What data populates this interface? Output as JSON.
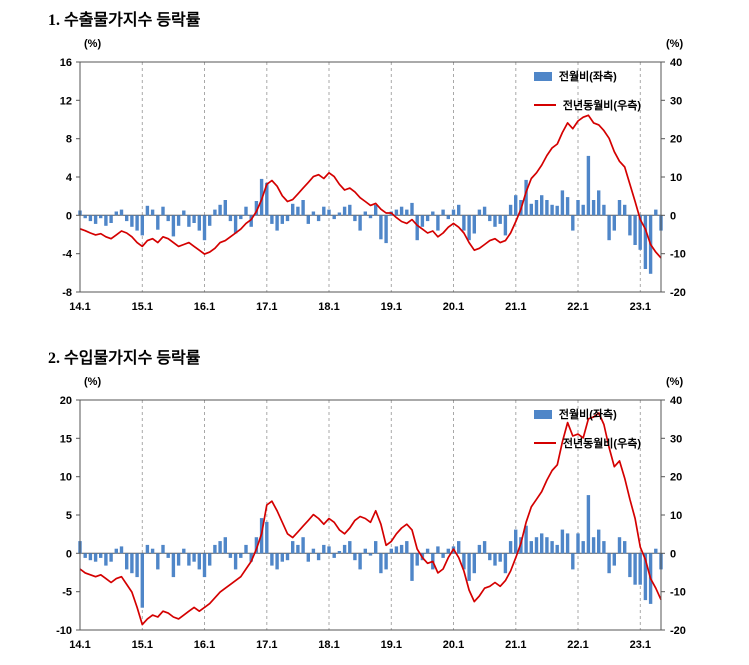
{
  "chart_data": [
    {
      "type": "bar+line",
      "title": "1. 수출물가지수 등락률",
      "unit_left": "(%)",
      "unit_right": "(%)",
      "bar_color": "#4f86c8",
      "line_color": "#d40000",
      "legend_position": "top-right-inside",
      "grid": "vertical-dashed",
      "x_ticks": [
        "14.1",
        "15.1",
        "16.1",
        "17.1",
        "18.1",
        "19.1",
        "20.1",
        "21.1",
        "22.1",
        "23.1"
      ],
      "left_axis": {
        "min": -8,
        "max": 16,
        "ticks": [
          16,
          12,
          8,
          4,
          0,
          -4,
          -8
        ]
      },
      "right_axis": {
        "min": -20,
        "max": 40,
        "ticks": [
          40,
          30,
          20,
          10,
          0,
          -10,
          -20
        ]
      },
      "x": [
        "14.1",
        "14.2",
        "14.3",
        "14.4",
        "14.5",
        "14.6",
        "14.7",
        "14.8",
        "14.9",
        "14.10",
        "14.11",
        "14.12",
        "15.1",
        "15.2",
        "15.3",
        "15.4",
        "15.5",
        "15.6",
        "15.7",
        "15.8",
        "15.9",
        "15.10",
        "15.11",
        "15.12",
        "16.1",
        "16.2",
        "16.3",
        "16.4",
        "16.5",
        "16.6",
        "16.7",
        "16.8",
        "16.9",
        "16.10",
        "16.11",
        "16.12",
        "17.1",
        "17.2",
        "17.3",
        "17.4",
        "17.5",
        "17.6",
        "17.7",
        "17.8",
        "17.9",
        "17.10",
        "17.11",
        "17.12",
        "18.1",
        "18.2",
        "18.3",
        "18.4",
        "18.5",
        "18.6",
        "18.7",
        "18.8",
        "18.9",
        "18.10",
        "18.11",
        "18.12",
        "19.1",
        "19.2",
        "19.3",
        "19.4",
        "19.5",
        "19.6",
        "19.7",
        "19.8",
        "19.9",
        "19.10",
        "19.11",
        "19.12",
        "20.1",
        "20.2",
        "20.3",
        "20.4",
        "20.5",
        "20.6",
        "20.7",
        "20.8",
        "20.9",
        "20.10",
        "20.11",
        "20.12",
        "21.1",
        "21.2",
        "21.3",
        "21.4",
        "21.5",
        "21.6",
        "21.7",
        "21.8",
        "21.9",
        "21.10",
        "21.11",
        "21.12",
        "22.1",
        "22.2",
        "22.3",
        "22.4",
        "22.5",
        "22.6",
        "22.7",
        "22.8",
        "22.9",
        "22.10",
        "22.11",
        "22.12",
        "23.1",
        "23.2",
        "23.3",
        "23.4",
        "23.5"
      ],
      "series": [
        {
          "name": "전월비(좌측)",
          "type": "bar",
          "axis": "left",
          "values": [
            0.5,
            -0.3,
            -0.6,
            -0.9,
            -0.3,
            -1.1,
            -0.8,
            0.4,
            0.6,
            -0.6,
            -1.2,
            -1.6,
            -2.1,
            1.0,
            0.6,
            -1.5,
            0.9,
            -0.6,
            -2.2,
            -1.1,
            0.5,
            -1.2,
            -0.8,
            -1.6,
            -2.6,
            -1.1,
            0.6,
            1.1,
            1.6,
            -0.6,
            -1.9,
            -0.4,
            0.9,
            -1.2,
            1.5,
            3.8,
            3.4,
            -0.9,
            -1.6,
            -0.9,
            -0.6,
            1.2,
            0.9,
            1.6,
            -0.9,
            0.4,
            -0.6,
            0.9,
            0.6,
            -0.4,
            0.3,
            0.9,
            1.1,
            -0.6,
            -1.6,
            0.4,
            -0.3,
            1.1,
            -2.5,
            -2.9,
            0.4,
            0.6,
            0.9,
            0.6,
            1.3,
            -2.6,
            -1.2,
            -0.6,
            0.4,
            -1.6,
            0.6,
            -0.4,
            0.6,
            1.1,
            -1.6,
            -2.6,
            -1.9,
            0.6,
            0.9,
            -0.6,
            -1.2,
            -0.9,
            -2.1,
            1.1,
            2.1,
            1.6,
            3.7,
            1.2,
            1.6,
            2.1,
            1.6,
            1.1,
            1.0,
            2.6,
            1.9,
            -1.6,
            1.6,
            1.1,
            6.2,
            1.6,
            2.6,
            1.1,
            -2.6,
            -1.6,
            1.6,
            1.1,
            -2.1,
            -3.1,
            -3.6,
            -5.6,
            -6.1,
            0.6,
            -1.6
          ]
        },
        {
          "name": "전년동월비(우측)",
          "type": "line",
          "axis": "right",
          "values": [
            -3.5,
            -4.0,
            -4.6,
            -5.1,
            -4.8,
            -5.6,
            -6.1,
            -5.1,
            -4.1,
            -4.6,
            -5.6,
            -7.1,
            -8.1,
            -6.6,
            -6.1,
            -7.1,
            -5.6,
            -6.1,
            -7.1,
            -8.1,
            -7.6,
            -7.1,
            -8.1,
            -9.1,
            -10.1,
            -9.6,
            -8.6,
            -7.1,
            -6.6,
            -5.6,
            -4.6,
            -3.6,
            -2.1,
            -1.1,
            1.0,
            4.1,
            8.1,
            9.1,
            7.6,
            5.1,
            3.6,
            4.1,
            5.6,
            7.1,
            8.6,
            10.1,
            10.6,
            9.6,
            11.1,
            10.1,
            8.1,
            6.6,
            7.1,
            6.1,
            4.6,
            3.6,
            2.6,
            3.1,
            1.6,
            0.6,
            0.6,
            -0.6,
            -1.6,
            -2.1,
            -1.1,
            -2.6,
            -3.6,
            -4.6,
            -4.1,
            -5.6,
            -4.6,
            -3.1,
            -2.1,
            -3.1,
            -4.6,
            -7.1,
            -9.1,
            -8.6,
            -7.6,
            -6.6,
            -6.1,
            -7.1,
            -6.6,
            -4.6,
            -1.6,
            1.6,
            6.1,
            9.6,
            11.1,
            13.1,
            15.6,
            17.6,
            18.6,
            21.6,
            24.1,
            22.6,
            24.6,
            25.6,
            26.1,
            24.1,
            23.6,
            22.1,
            20.1,
            16.6,
            14.1,
            12.6,
            8.1,
            3.6,
            -1.1,
            -3.6,
            -7.6,
            -9.6,
            -11.1
          ]
        }
      ]
    },
    {
      "type": "bar+line",
      "title": "2. 수입물가지수 등락률",
      "unit_left": "(%)",
      "unit_right": "(%)",
      "bar_color": "#4f86c8",
      "line_color": "#d40000",
      "legend_position": "top-right-inside",
      "grid": "vertical-dashed",
      "x_ticks": [
        "14.1",
        "15.1",
        "16.1",
        "17.1",
        "18.1",
        "19.1",
        "20.1",
        "21.1",
        "22.1",
        "23.1"
      ],
      "left_axis": {
        "min": -10,
        "max": 20,
        "ticks": [
          20,
          15,
          10,
          5,
          0,
          -5,
          -10
        ]
      },
      "right_axis": {
        "min": -20,
        "max": 40,
        "ticks": [
          40,
          30,
          20,
          10,
          0,
          -10,
          -20
        ]
      },
      "x": [
        "14.1",
        "14.2",
        "14.3",
        "14.4",
        "14.5",
        "14.6",
        "14.7",
        "14.8",
        "14.9",
        "14.10",
        "14.11",
        "14.12",
        "15.1",
        "15.2",
        "15.3",
        "15.4",
        "15.5",
        "15.6",
        "15.7",
        "15.8",
        "15.9",
        "15.10",
        "15.11",
        "15.12",
        "16.1",
        "16.2",
        "16.3",
        "16.4",
        "16.5",
        "16.6",
        "16.7",
        "16.8",
        "16.9",
        "16.10",
        "16.11",
        "16.12",
        "17.1",
        "17.2",
        "17.3",
        "17.4",
        "17.5",
        "17.6",
        "17.7",
        "17.8",
        "17.9",
        "17.10",
        "17.11",
        "17.12",
        "18.1",
        "18.2",
        "18.3",
        "18.4",
        "18.5",
        "18.6",
        "18.7",
        "18.8",
        "18.9",
        "18.10",
        "18.11",
        "18.12",
        "19.1",
        "19.2",
        "19.3",
        "19.4",
        "19.5",
        "19.6",
        "19.7",
        "19.8",
        "19.9",
        "19.10",
        "19.11",
        "19.12",
        "20.1",
        "20.2",
        "20.3",
        "20.4",
        "20.5",
        "20.6",
        "20.7",
        "20.8",
        "20.9",
        "20.10",
        "20.11",
        "20.12",
        "21.1",
        "21.2",
        "21.3",
        "21.4",
        "21.5",
        "21.6",
        "21.7",
        "21.8",
        "21.9",
        "21.10",
        "21.11",
        "21.12",
        "22.1",
        "22.2",
        "22.3",
        "22.4",
        "22.5",
        "22.6",
        "22.7",
        "22.8",
        "22.9",
        "22.10",
        "22.11",
        "22.12",
        "23.1",
        "23.2",
        "23.3",
        "23.4",
        "23.5"
      ],
      "series": [
        {
          "name": "전월비(좌측)",
          "type": "bar",
          "axis": "left",
          "values": [
            1.6,
            -0.6,
            -0.9,
            -1.1,
            -0.6,
            -1.6,
            -1.1,
            0.6,
            0.9,
            -2.1,
            -2.6,
            -3.1,
            -7.1,
            1.1,
            0.6,
            -2.1,
            1.1,
            -0.6,
            -3.1,
            -1.6,
            0.6,
            -1.6,
            -1.1,
            -2.1,
            -3.1,
            -1.6,
            1.1,
            1.6,
            2.1,
            -0.6,
            -2.1,
            -0.6,
            1.1,
            -1.1,
            2.1,
            4.6,
            4.1,
            -1.6,
            -2.1,
            -1.1,
            -0.9,
            1.6,
            1.1,
            2.1,
            -1.1,
            0.6,
            -0.9,
            1.1,
            0.9,
            -0.6,
            0.3,
            1.1,
            1.6,
            -0.9,
            -2.1,
            0.6,
            -0.3,
            1.6,
            -2.6,
            -2.1,
            0.6,
            0.9,
            1.1,
            1.6,
            -3.6,
            -1.6,
            -0.9,
            0.6,
            -2.1,
            0.9,
            -0.6,
            0.6,
            0.9,
            1.6,
            -2.1,
            -3.6,
            -2.6,
            1.1,
            1.6,
            -0.9,
            -1.6,
            -1.1,
            -2.6,
            1.6,
            3.1,
            2.1,
            3.6,
            1.6,
            2.1,
            2.6,
            2.1,
            1.6,
            1.1,
            3.1,
            2.6,
            -2.1,
            2.6,
            1.6,
            7.6,
            2.1,
            3.1,
            1.6,
            -2.6,
            -1.6,
            2.1,
            1.6,
            -3.1,
            -4.1,
            -4.1,
            -6.1,
            -6.6,
            0.6,
            -2.1
          ]
        },
        {
          "name": "전년동월비(우측)",
          "type": "line",
          "axis": "right",
          "values": [
            -4.1,
            -5.1,
            -5.6,
            -6.1,
            -5.6,
            -6.6,
            -7.6,
            -6.6,
            -6.1,
            -8.1,
            -10.1,
            -14.1,
            -18.6,
            -17.1,
            -16.1,
            -16.6,
            -15.1,
            -15.6,
            -16.6,
            -17.1,
            -16.1,
            -15.1,
            -14.1,
            -15.1,
            -14.1,
            -13.1,
            -11.6,
            -10.1,
            -9.1,
            -8.1,
            -7.1,
            -6.1,
            -4.1,
            -2.1,
            1.1,
            5.1,
            12.6,
            13.6,
            11.1,
            8.1,
            5.1,
            4.1,
            5.6,
            7.1,
            8.6,
            10.1,
            9.1,
            7.6,
            9.1,
            8.1,
            6.1,
            5.1,
            6.6,
            8.6,
            9.6,
            9.1,
            8.1,
            11.1,
            7.6,
            2.1,
            3.1,
            5.1,
            6.6,
            7.6,
            6.1,
            1.1,
            -1.1,
            -2.6,
            -2.1,
            -5.1,
            -4.1,
            -1.1,
            1.1,
            -1.1,
            -4.6,
            -9.6,
            -12.6,
            -11.1,
            -9.1,
            -8.6,
            -7.6,
            -8.6,
            -7.1,
            -4.6,
            -1.1,
            2.6,
            8.1,
            12.1,
            14.1,
            16.1,
            19.1,
            21.6,
            23.1,
            29.1,
            34.1,
            30.6,
            31.1,
            30.1,
            35.1,
            35.6,
            36.6,
            33.6,
            27.6,
            22.6,
            24.1,
            19.6,
            14.1,
            9.1,
            1.6,
            -1.6,
            -6.6,
            -9.1,
            -12.1
          ]
        }
      ]
    }
  ]
}
